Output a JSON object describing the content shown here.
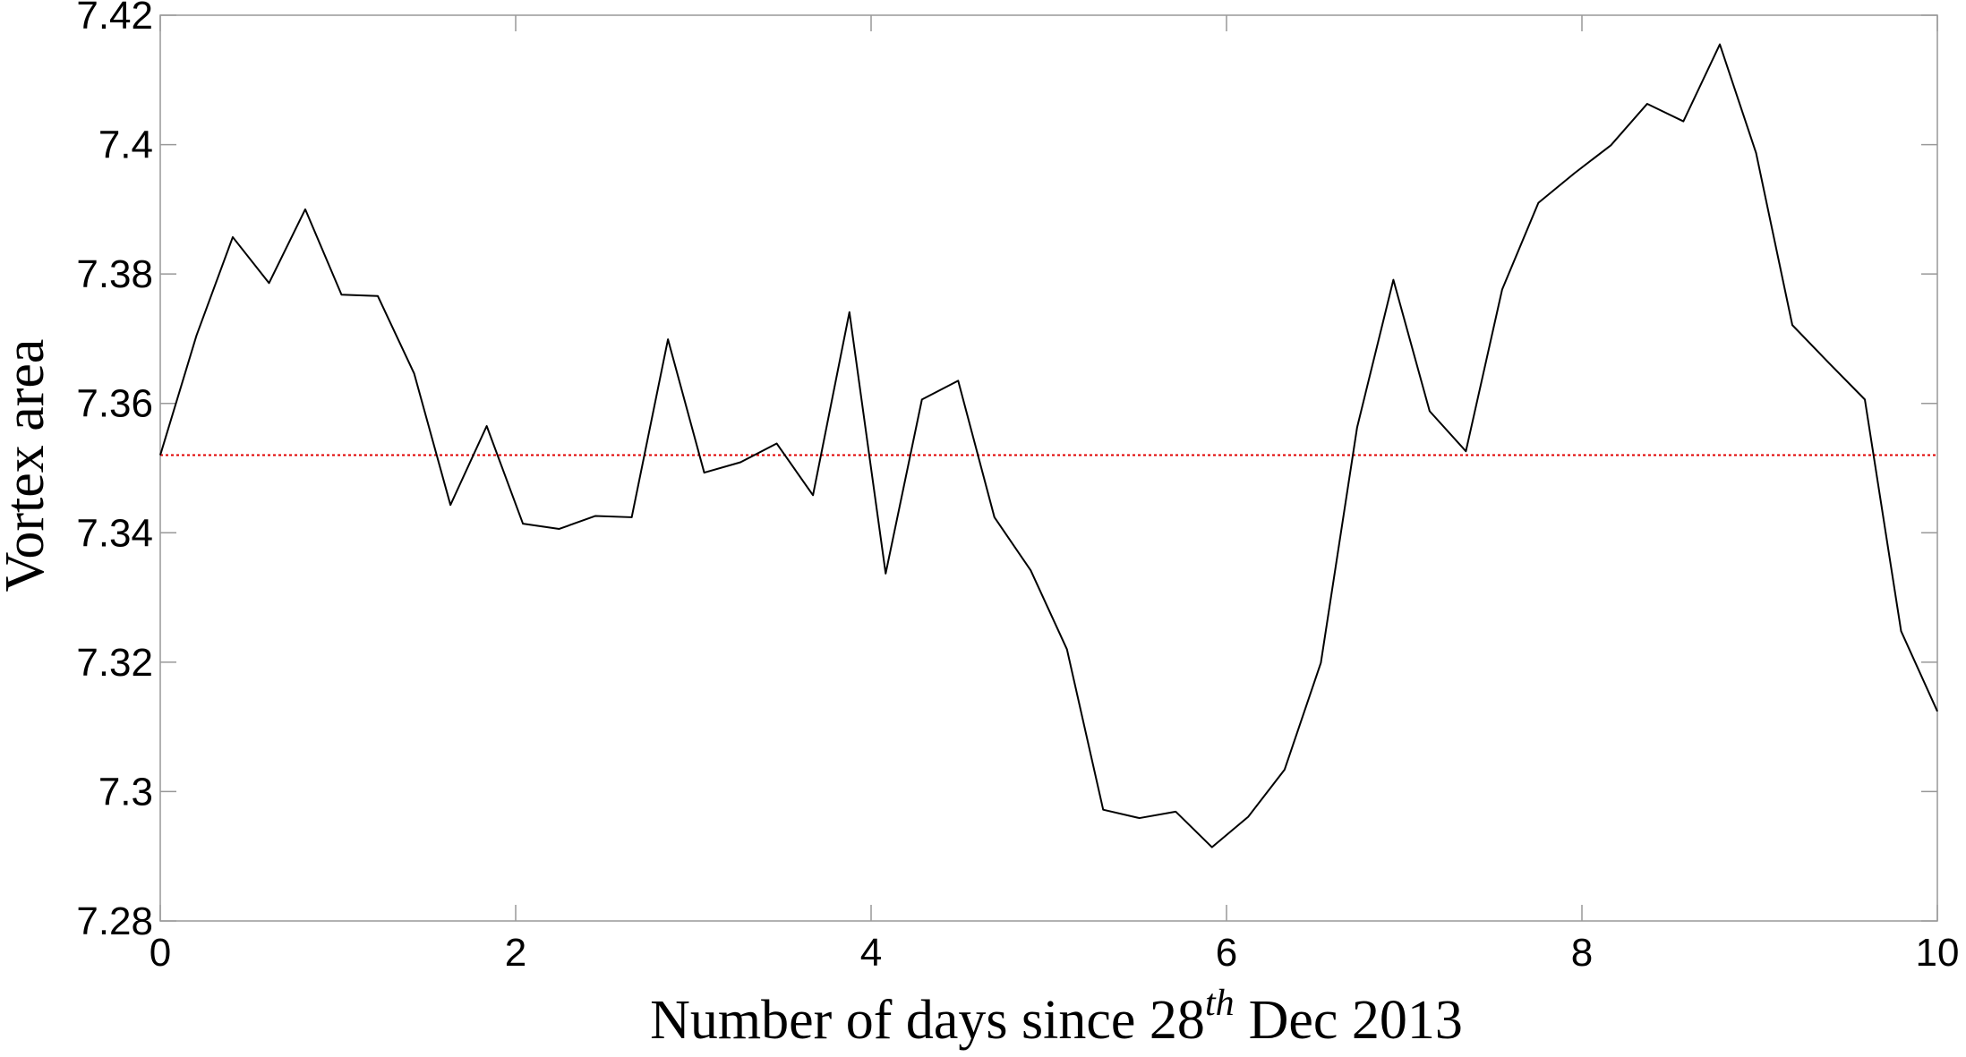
{
  "chart_data": {
    "type": "line",
    "x_label": [
      "Number of days since 28",
      "th",
      "Dec 2013"
    ],
    "y_label": "Vortex area",
    "x": [
      0,
      0.204,
      0.408,
      0.612,
      0.816,
      1.02,
      1.224,
      1.429,
      1.633,
      1.837,
      2.041,
      2.245,
      2.449,
      2.653,
      2.857,
      3.061,
      3.265,
      3.469,
      3.673,
      3.878,
      4.082,
      4.286,
      4.49,
      4.694,
      4.898,
      5.102,
      5.306,
      5.51,
      5.714,
      5.918,
      6.122,
      6.327,
      6.531,
      6.735,
      6.939,
      7.143,
      7.347,
      7.551,
      7.755,
      7.959,
      8.163,
      8.367,
      8.571,
      8.776,
      8.98,
      9.184,
      9.388,
      9.592,
      9.796,
      10
    ],
    "series": [
      {
        "color": "#000000",
        "values": [
          7.352,
          7.3705,
          7.3857,
          7.3786,
          7.39,
          7.3768,
          7.3766,
          7.3646,
          7.3443,
          7.3565,
          7.3414,
          7.3406,
          7.3426,
          7.3424,
          7.3699,
          7.3493,
          7.3509,
          7.3538,
          7.3458,
          7.3741,
          7.3337,
          7.3606,
          7.3635,
          7.3424,
          7.3342,
          7.322,
          7.2972,
          7.2959,
          7.2969,
          7.2914,
          7.2961,
          7.3034,
          7.3199,
          7.3563,
          7.3791,
          7.3588,
          7.3526,
          7.3776,
          7.391,
          7.3956,
          7.3999,
          7.4063,
          7.4036,
          7.4155,
          7.3987,
          7.3721,
          7.3663,
          7.3606,
          7.3248,
          7.3124
        ]
      }
    ],
    "hline": {
      "value": 7.352,
      "color": "#e00000",
      "style": "dotted"
    },
    "xlim": [
      0,
      10
    ],
    "xticks": [
      0,
      2,
      4,
      6,
      8,
      10
    ],
    "ylim": [
      7.28,
      7.42
    ],
    "yticks": [
      7.28,
      7.3,
      7.32,
      7.34,
      7.36,
      7.38,
      7.4,
      7.42
    ],
    "grid": false
  }
}
